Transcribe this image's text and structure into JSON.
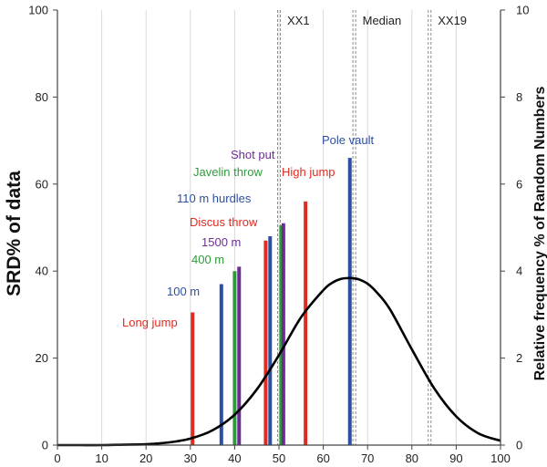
{
  "chart_data": {
    "type": "bar",
    "title": "",
    "xlabel": "",
    "ylabel": "SRD% of data",
    "y2label": "Relative frequency % of Random Numbers",
    "xlim": [
      0,
      100
    ],
    "ylim": [
      0,
      100
    ],
    "y2lim": [
      0,
      10
    ],
    "x_ticks": [
      0,
      10,
      20,
      30,
      40,
      50,
      60,
      70,
      80,
      90,
      100
    ],
    "y_ticks": [
      0,
      20,
      40,
      60,
      80,
      100
    ],
    "y2_ticks": [
      0,
      2,
      4,
      6,
      8,
      10
    ],
    "grid": "vertical",
    "events": [
      {
        "name": "Long jump",
        "x": 30.5,
        "value": 30.5,
        "color": "#e02b20"
      },
      {
        "name": "100 m",
        "x": 37,
        "value": 37,
        "color": "#2d4fa3"
      },
      {
        "name": "400 m",
        "x": 40,
        "value": 40,
        "color": "#2e9a3a"
      },
      {
        "name": "1500 m",
        "x": 41,
        "value": 41,
        "color": "#6b2d91"
      },
      {
        "name": "Discus throw",
        "x": 47,
        "value": 47,
        "color": "#e02b20"
      },
      {
        "name": "110 m hurdles",
        "x": 48,
        "value": 48,
        "color": "#2d4fa3"
      },
      {
        "name": "Javelin throw",
        "x": 50.5,
        "value": 50.5,
        "color": "#2e9a3a"
      },
      {
        "name": "Shot put",
        "x": 51,
        "value": 51,
        "color": "#6b2d91"
      },
      {
        "name": "High jump",
        "x": 56,
        "value": 56,
        "color": "#e02b20"
      },
      {
        "name": "Pole vault",
        "x": 66,
        "value": 66,
        "color": "#2d4fa3"
      }
    ],
    "reference_lines": [
      {
        "label": "XX1",
        "x": 50
      },
      {
        "label": "Median",
        "x": 67
      },
      {
        "label": "XX19",
        "x": 84
      }
    ],
    "curve": {
      "name": "Relative frequency % of Random Numbers",
      "color": "#000000",
      "x": [
        0,
        5,
        10,
        15,
        20,
        25,
        30,
        35,
        40,
        45,
        50,
        55,
        60,
        62,
        64,
        66,
        67,
        68,
        70,
        72,
        75,
        80,
        85,
        90,
        95,
        100
      ],
      "y": [
        0,
        0,
        0,
        0.01,
        0.02,
        0.06,
        0.15,
        0.34,
        0.7,
        1.28,
        2.07,
        2.94,
        3.56,
        3.73,
        3.82,
        3.84,
        3.83,
        3.81,
        3.71,
        3.52,
        3.13,
        2.2,
        1.31,
        0.66,
        0.27,
        0.1
      ]
    }
  }
}
